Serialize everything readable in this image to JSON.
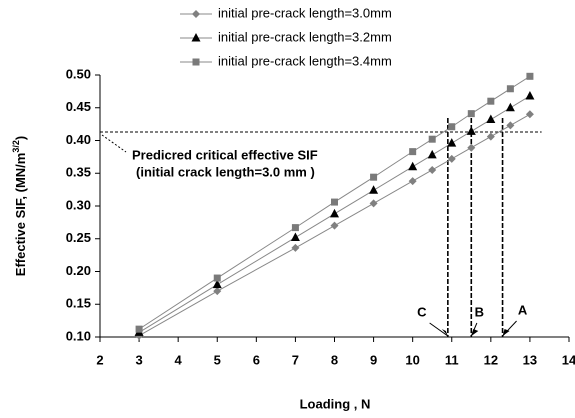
{
  "chart_data": {
    "type": "line",
    "x_label": "Loading , N",
    "y_label": [
      "Effective SIF,  (MN/m",
      "3/2",
      ")"
    ],
    "x": [
      3,
      5,
      7,
      8,
      9,
      10,
      10.5,
      11,
      11.5,
      12,
      12.5,
      13
    ],
    "series": [
      {
        "name": "initial pre-crack length=3.0mm",
        "color": "#808080",
        "marker": "diamond",
        "values": [
          0.102,
          0.17,
          0.236,
          0.27,
          0.304,
          0.338,
          0.355,
          0.372,
          0.389,
          0.406,
          0.423,
          0.44
        ]
      },
      {
        "name": "initial pre-crack length=3.2mm",
        "color": "#000000",
        "marker": "triangle",
        "values": [
          0.107,
          0.18,
          0.252,
          0.288,
          0.324,
          0.36,
          0.378,
          0.396,
          0.414,
          0.432,
          0.45,
          0.468
        ]
      },
      {
        "name": "initial pre-crack length=3.4mm",
        "color": "#7a7a7a",
        "marker": "square",
        "values": [
          0.112,
          0.19,
          0.267,
          0.306,
          0.344,
          0.383,
          0.402,
          0.421,
          0.441,
          0.46,
          0.479,
          0.498
        ]
      }
    ],
    "xlim": [
      2,
      14
    ],
    "xticks": [
      2,
      3,
      4,
      5,
      6,
      7,
      8,
      9,
      10,
      11,
      12,
      13,
      14
    ],
    "ylim": [
      0.1,
      0.5
    ],
    "yticks": [
      {
        "value": 0.1,
        "label": "0.10"
      },
      0.15,
      {
        "value": 0.2,
        "label": "0.20"
      },
      0.25,
      {
        "value": 0.3,
        "label": "0.30"
      },
      0.35,
      {
        "value": 0.4,
        "label": "0.40"
      },
      0.45,
      {
        "value": 0.5,
        "label": "0.50"
      }
    ],
    "critical_sif": 0.413,
    "critical_label": [
      "Predicred critical effective SIF",
      "(initial crack length=3.0 mm )"
    ],
    "markers": [
      {
        "label": "C",
        "x": 10.9
      },
      {
        "label": "B",
        "x": 11.5
      },
      {
        "label": "A",
        "x": 12.3
      }
    ],
    "grid": false
  }
}
